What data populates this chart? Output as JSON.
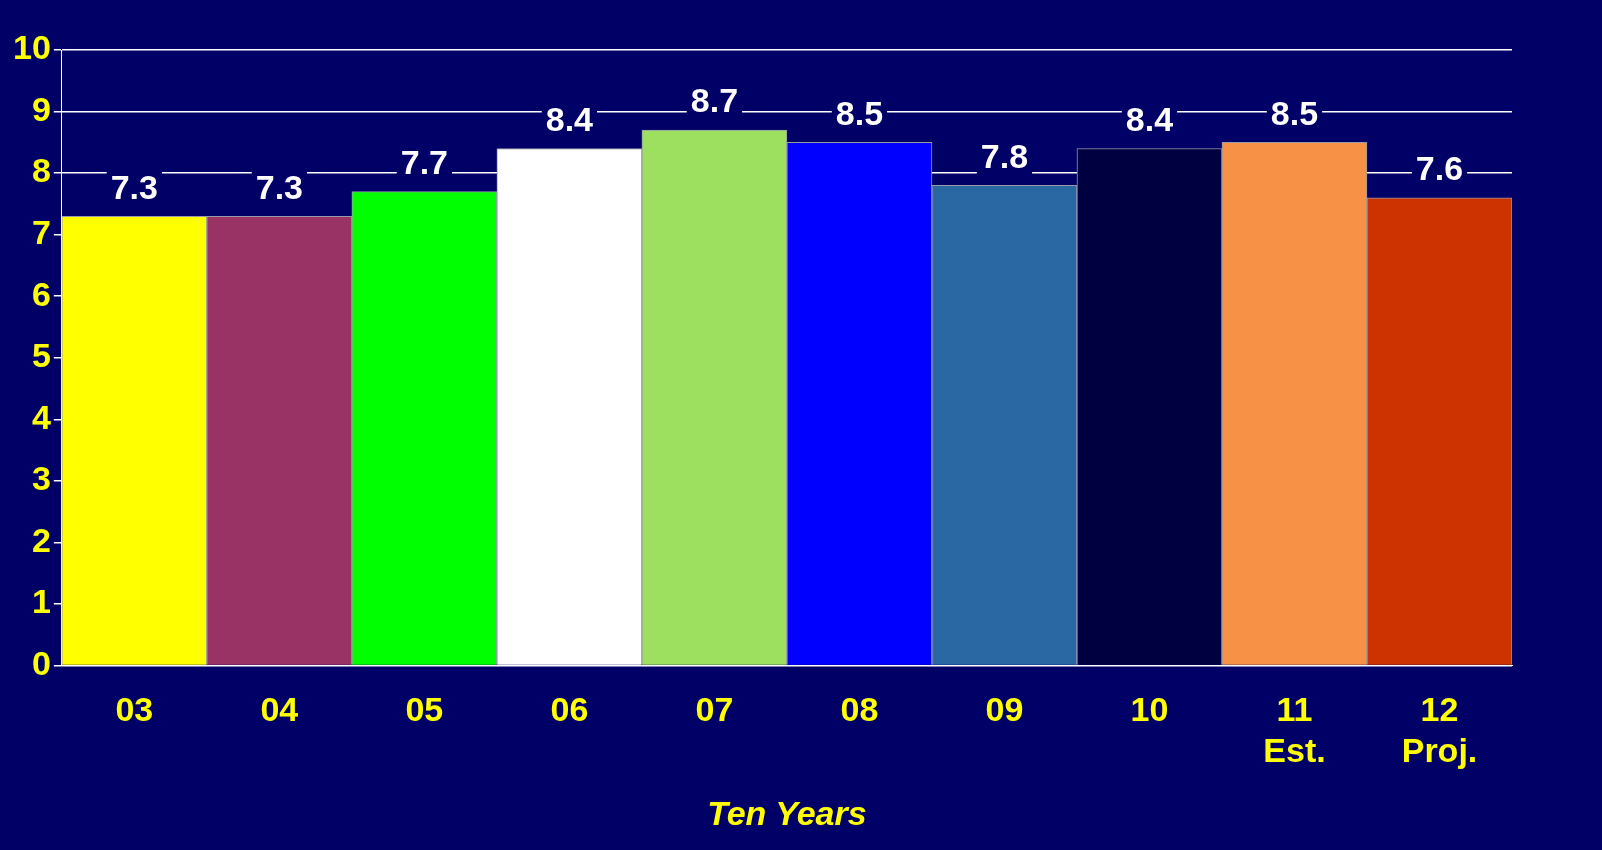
{
  "chart_data": {
    "type": "bar",
    "xlabel": "Ten Years",
    "categories": [
      "03",
      "04",
      "05",
      "06",
      "07",
      "08",
      "09",
      "10",
      "11 Est.",
      "12 Proj."
    ],
    "values": [
      7.3,
      7.3,
      7.7,
      8.4,
      8.7,
      8.5,
      7.8,
      8.4,
      8.5,
      7.6
    ],
    "colors": [
      "#ffff00",
      "#993366",
      "#00ff00",
      "#ffffff",
      "#9de05f",
      "#0000ff",
      "#2a68a4",
      "#000040",
      "#f79146",
      "#cc3300"
    ],
    "ylim": [
      0,
      10
    ],
    "yticks": [
      0,
      1,
      2,
      3,
      4,
      5,
      6,
      7,
      8,
      9,
      10
    ],
    "grid": "y",
    "legend": false,
    "data_labels": true
  }
}
